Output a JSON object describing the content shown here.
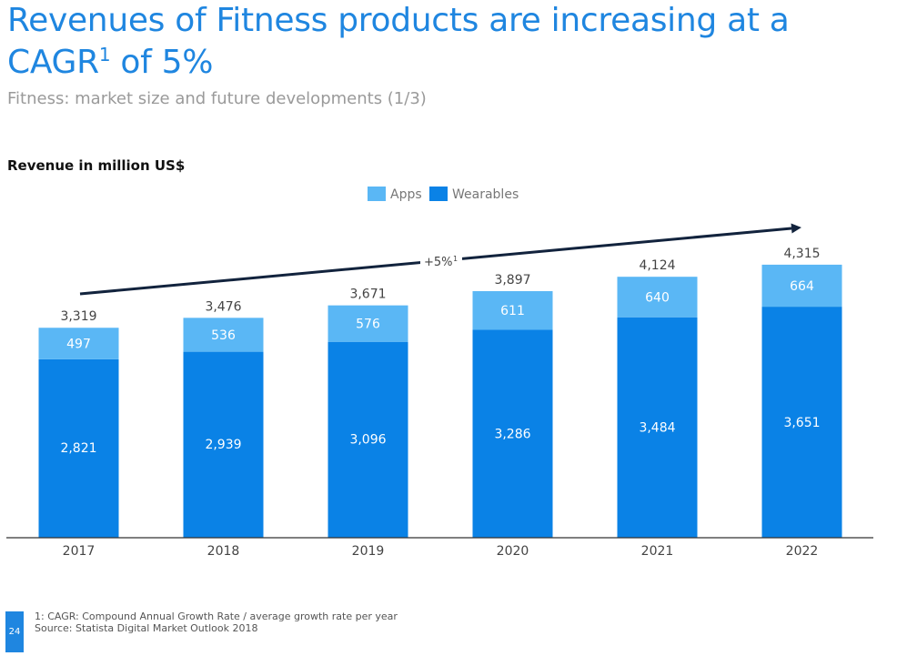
{
  "header": {
    "title_line1": "Revenues of Fitness products are increasing at a",
    "title_line2_main": "CAGR",
    "title_line2_sup": "1",
    "title_line2_tail": " of 5%",
    "subtitle": "Fitness: market size and future developments (1/3)"
  },
  "footer": {
    "page_number": "24",
    "note": "1: CAGR: Compound Annual Growth Rate / average growth rate per year",
    "source": "Source: Statista Digital Market Outlook 2018"
  },
  "colors": {
    "wearables": "#0a82e6",
    "apps": "#5ab7f5",
    "arrow": "#12233d",
    "axis": "#333333"
  },
  "chart_data": {
    "type": "bar",
    "stacked": true,
    "ylabel": "Revenue in million US$",
    "categories": [
      "2017",
      "2018",
      "2019",
      "2020",
      "2021",
      "2022"
    ],
    "series": [
      {
        "name": "Wearables",
        "values": [
          2821,
          2939,
          3096,
          3286,
          3484,
          3651
        ]
      },
      {
        "name": "Apps",
        "values": [
          497,
          536,
          576,
          611,
          640,
          664
        ]
      }
    ],
    "totals": [
      "3,319",
      "3,476",
      "3,671",
      "3,897",
      "4,124",
      "4,315"
    ],
    "wearables_labels": [
      "2,821",
      "2,939",
      "3,096",
      "3,286",
      "3,484",
      "3,651"
    ],
    "apps_labels": [
      "497",
      "536",
      "576",
      "611",
      "640",
      "664"
    ],
    "legend": [
      "Apps",
      "Wearables"
    ],
    "legend_position": "top-center",
    "trend_label": "+5%",
    "trend_label_sup": "1",
    "ylim": [
      0,
      4500
    ],
    "grid": false
  }
}
